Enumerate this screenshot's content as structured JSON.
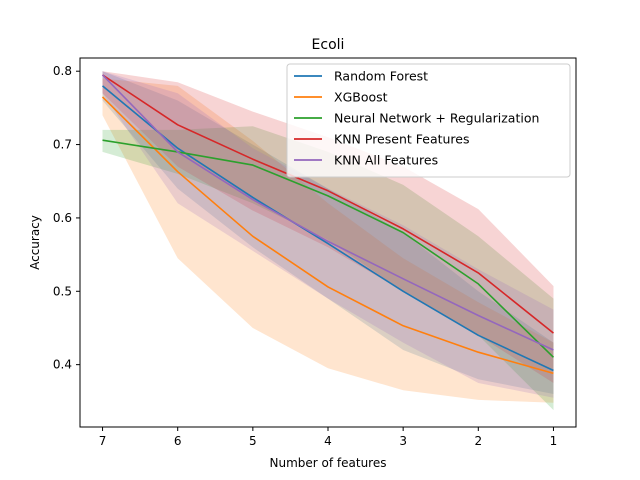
{
  "chart_data": {
    "type": "line",
    "title": "Ecoli",
    "xlabel": "Number of features",
    "ylabel": "Accuracy",
    "x": [
      7,
      6,
      5,
      4,
      3,
      2,
      1
    ],
    "xlim": [
      7.3,
      0.7
    ],
    "ylim": [
      0.315,
      0.818
    ],
    "yticks": [
      0.4,
      0.5,
      0.6,
      0.7,
      0.8
    ],
    "legend_position": "top-right",
    "grid": false,
    "series": [
      {
        "name": "Random Forest",
        "color": "#1f77b4",
        "values": [
          0.78,
          0.695,
          0.628,
          0.565,
          0.5,
          0.44,
          0.392
        ],
        "lower": [
          0.76,
          0.64,
          0.56,
          0.49,
          0.42,
          0.38,
          0.36
        ],
        "upper": [
          0.8,
          0.76,
          0.7,
          0.64,
          0.58,
          0.5,
          0.43
        ]
      },
      {
        "name": "XGBoost",
        "color": "#ff7f0e",
        "values": [
          0.765,
          0.663,
          0.575,
          0.506,
          0.453,
          0.417,
          0.388
        ],
        "lower": [
          0.74,
          0.545,
          0.45,
          0.395,
          0.365,
          0.352,
          0.348
        ],
        "upper": [
          0.79,
          0.78,
          0.705,
          0.62,
          0.545,
          0.485,
          0.43
        ]
      },
      {
        "name": "Neural Network + Regularization",
        "color": "#2ca02c",
        "values": [
          0.706,
          0.69,
          0.672,
          0.63,
          0.58,
          0.51,
          0.41
        ],
        "lower": [
          0.69,
          0.66,
          0.62,
          0.57,
          0.5,
          0.44,
          0.338
        ],
        "upper": [
          0.72,
          0.72,
          0.725,
          0.69,
          0.645,
          0.575,
          0.49
        ]
      },
      {
        "name": "KNN Present Features",
        "color": "#d62728",
        "values": [
          0.795,
          0.727,
          0.68,
          0.637,
          0.585,
          0.525,
          0.443
        ],
        "lower": [
          0.77,
          0.67,
          0.61,
          0.56,
          0.5,
          0.44,
          0.375
        ],
        "upper": [
          0.8,
          0.785,
          0.745,
          0.71,
          0.67,
          0.612,
          0.507
        ]
      },
      {
        "name": "KNN All Features",
        "color": "#9467bd",
        "values": [
          0.795,
          0.69,
          0.625,
          0.568,
          0.517,
          0.467,
          0.42
        ],
        "lower": [
          0.77,
          0.62,
          0.555,
          0.49,
          0.43,
          0.375,
          0.355
        ],
        "upper": [
          0.8,
          0.77,
          0.695,
          0.64,
          0.59,
          0.53,
          0.475
        ]
      }
    ]
  }
}
